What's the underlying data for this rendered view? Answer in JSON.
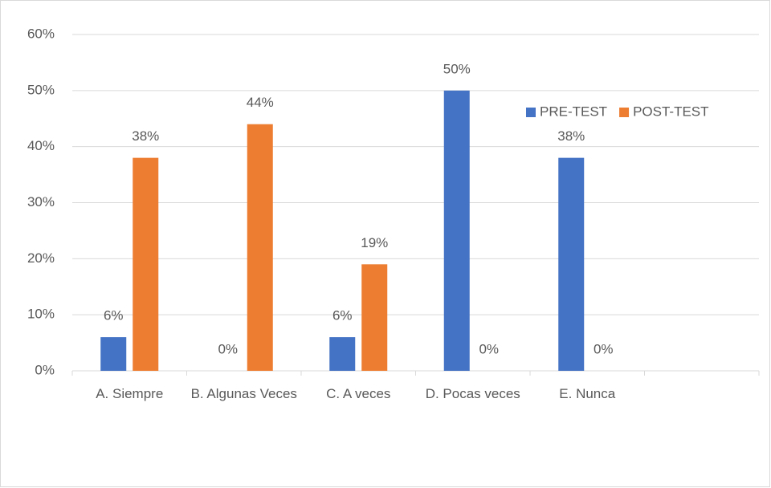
{
  "chart_data": {
    "type": "bar",
    "categories": [
      "A. Siempre",
      "B. Algunas Veces",
      "C. A veces",
      "D. Pocas veces",
      "E. Nunca",
      null
    ],
    "series": [
      {
        "name": "PRE-TEST",
        "color": "#4472c4",
        "values": [
          6,
          0,
          6,
          50,
          38,
          null
        ],
        "value_labels": [
          "6%",
          "0%",
          "6%",
          "50%",
          "38%",
          null
        ]
      },
      {
        "name": "POST-TEST",
        "color": "#ed7d31",
        "values": [
          38,
          44,
          19,
          0,
          0,
          null
        ],
        "value_labels": [
          "38%",
          "44%",
          "19%",
          "0%",
          "0%",
          null
        ]
      }
    ],
    "ylim": [
      0,
      60
    ],
    "yticks": [
      {
        "value": 0,
        "label": "0%"
      },
      {
        "value": 10,
        "label": "10%"
      },
      {
        "value": 20,
        "label": "20%"
      },
      {
        "value": 30,
        "label": "30%"
      },
      {
        "value": 40,
        "label": "40%"
      },
      {
        "value": 50,
        "label": "50%"
      },
      {
        "value": 60,
        "label": "60%"
      }
    ],
    "grid": true,
    "legend": "upper-right"
  }
}
